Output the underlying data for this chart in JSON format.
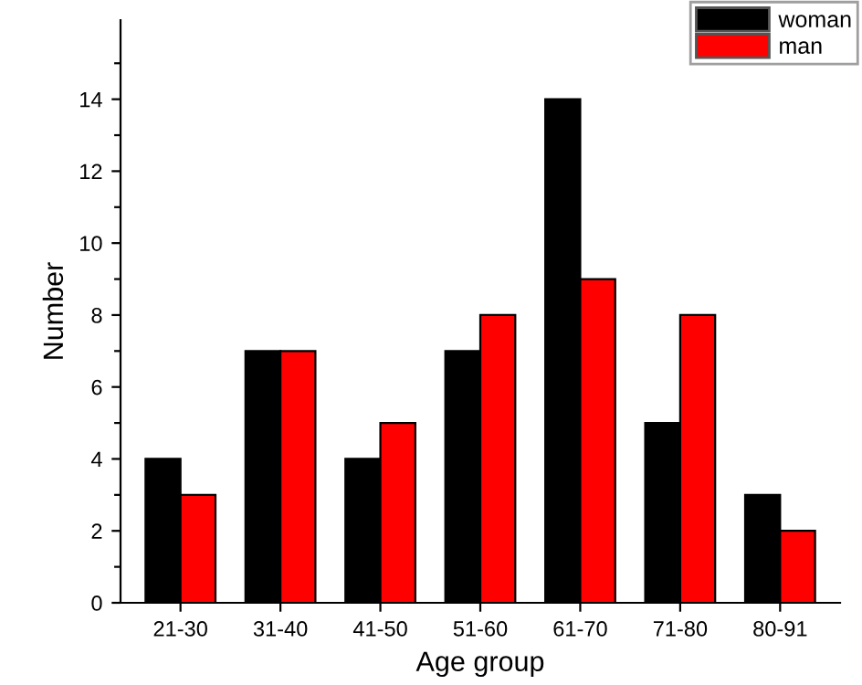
{
  "chart_data": {
    "type": "bar",
    "xlabel": "Age group",
    "ylabel": "Number",
    "categories": [
      "21-30",
      "31-40",
      "41-50",
      "51-60",
      "61-70",
      "71-80",
      "80-91"
    ],
    "series": [
      {
        "name": "woman",
        "color": "#000000",
        "values": [
          4,
          7,
          4,
          7,
          14,
          5,
          3
        ]
      },
      {
        "name": "man",
        "color": "#ff0000",
        "values": [
          3,
          7,
          5,
          8,
          9,
          8,
          2
        ]
      }
    ],
    "ylim": [
      0,
      16.2
    ],
    "yticks": [
      0,
      {
        "value": 1,
        "label": null
      },
      2,
      {
        "value": 3,
        "label": null
      },
      4,
      {
        "value": 5,
        "label": null
      },
      6,
      {
        "value": 7,
        "label": null
      },
      8,
      {
        "value": 9,
        "label": null
      },
      10,
      {
        "value": 11,
        "label": null
      },
      12,
      {
        "value": 13,
        "label": null
      },
      14,
      {
        "value": 15,
        "label": null
      }
    ],
    "legend": "top right",
    "grid": false
  }
}
